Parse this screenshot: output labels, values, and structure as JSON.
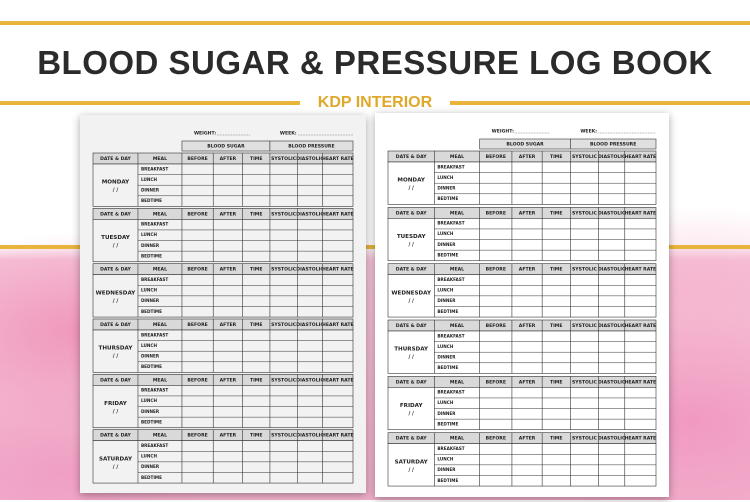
{
  "header": {
    "title": "BLOOD SUGAR & PRESSURE LOG BOOK",
    "subtitle": "KDP INTERIOR"
  },
  "pages": [
    {
      "weight": "WEIGHT:",
      "week": "WEEK:",
      "groups": [
        "BLOOD SUGAR",
        "BLOOD PRESSURE"
      ],
      "columns": [
        "DATE & DAY",
        "MEAL",
        "BEFORE",
        "AFTER",
        "TIME",
        "SYSTOLIC",
        "DIASTOLIC",
        "HEART RATE"
      ],
      "days": [
        {
          "name": "MONDAY",
          "date": "/ /"
        },
        {
          "name": "TUESDAY",
          "date": "/ /"
        },
        {
          "name": "WEDNESDAY",
          "date": "/ /"
        },
        {
          "name": "THURSDAY",
          "date": "/ /"
        },
        {
          "name": "FRIDAY",
          "date": "/ /"
        },
        {
          "name": "SATURDAY",
          "date": "/ /"
        }
      ],
      "meals": [
        "BREAKFAST",
        "LUNCH",
        "DINNER",
        "BEDTIME"
      ]
    },
    {
      "weight": "WEIGHT:",
      "week": "WEEK:",
      "groups": [
        "BLOOD SUGAR",
        "BLOOD PRESSURE"
      ],
      "columns": [
        "DATE & DAY",
        "MEAL",
        "BEFORE",
        "AFTER",
        "TIME",
        "SYSTOLIC",
        "DIASTOLIC",
        "HEART RATE"
      ],
      "days": [
        {
          "name": "MONDAY",
          "date": "/ /"
        },
        {
          "name": "TUESDAY",
          "date": "/ /"
        },
        {
          "name": "WEDNESDAY",
          "date": "/ /"
        },
        {
          "name": "THURSDAY",
          "date": "/ /"
        },
        {
          "name": "FRIDAY",
          "date": "/ /"
        },
        {
          "name": "SATURDAY",
          "date": "/ /"
        }
      ],
      "meals": [
        "BREAKFAST",
        "LUNCH",
        "DINNER",
        "BEDTIME"
      ]
    }
  ]
}
